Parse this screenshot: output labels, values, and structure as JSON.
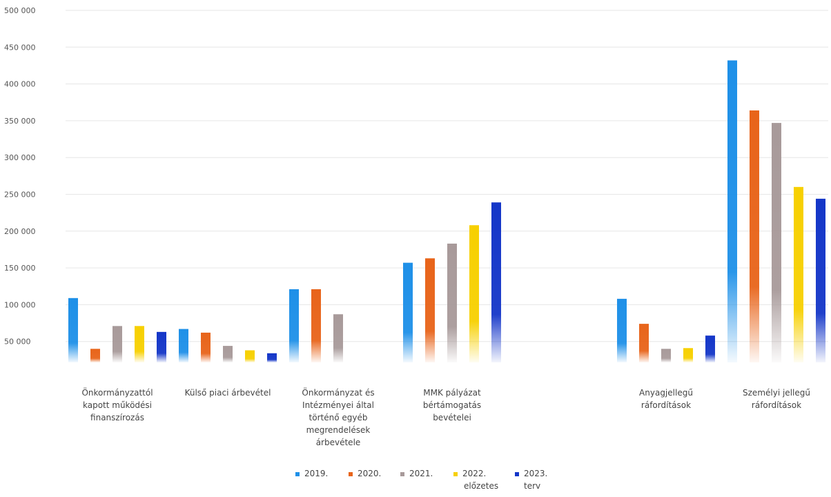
{
  "chart_data": {
    "type": "bar",
    "ylim": [
      0,
      500000
    ],
    "yticks": [
      50000,
      100000,
      150000,
      200000,
      250000,
      300000,
      350000,
      400000,
      450000,
      500000
    ],
    "ytick_labels": [
      "50 000",
      "100 000",
      "150 000",
      "200 000",
      "250 000",
      "300 000",
      "350 000",
      "400 000",
      "450 000",
      "500 000"
    ],
    "grid": true,
    "legend_position": "bottom",
    "categories": [
      [
        "Önkormányzattól",
        "kapott működési",
        "finanszírozás"
      ],
      [
        "Külső piaci árbevétel"
      ],
      [
        "Önkormányzat és",
        "Intézményei által",
        "történő egyéb",
        "megrendelések",
        "árbevétele"
      ],
      [
        "MMK pályázat",
        "bértámogatás",
        "bevételei"
      ],
      [
        "Anyagjellegű",
        "ráfordítások"
      ],
      [
        "Személyi jellegű",
        "ráfordítások"
      ]
    ],
    "series": [
      {
        "name": "2019.",
        "color": "#1E90E8",
        "values": [
          109000,
          67000,
          121000,
          157000,
          108000,
          432000
        ]
      },
      {
        "name": "2020.",
        "color": "#E8641A",
        "values": [
          40000,
          62000,
          121000,
          163000,
          74000,
          364000
        ]
      },
      {
        "name": "2021.",
        "color": "#A89A9A",
        "values": [
          71000,
          44000,
          87000,
          183000,
          40000,
          347000
        ]
      },
      {
        "name": "2022.",
        "name_line2": "előzetes",
        "color": "#F7D000",
        "values": [
          71000,
          38000,
          null,
          208000,
          41000,
          260000
        ]
      },
      {
        "name": "2023.",
        "name_line2": "terv",
        "color": "#1436C8",
        "values": [
          63000,
          34000,
          null,
          239000,
          58000,
          244000
        ]
      }
    ]
  }
}
